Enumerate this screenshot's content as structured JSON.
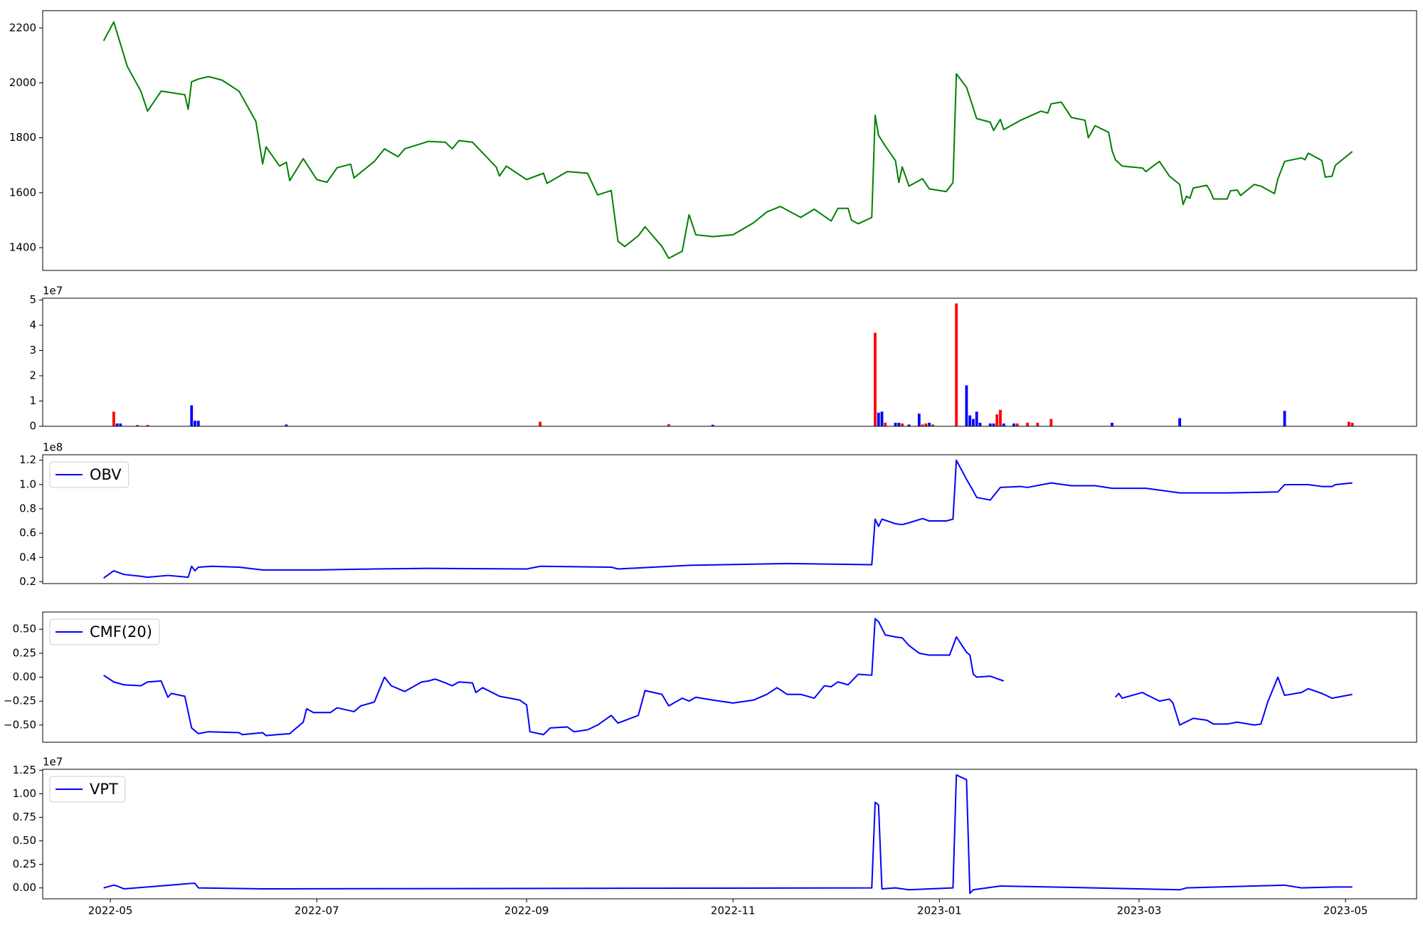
{
  "chart_data": [
    {
      "type": "line",
      "x": [
        "2022-04-29",
        "2022-05-02",
        "2022-05-06",
        "2022-05-10",
        "2022-05-12",
        "2022-05-16",
        "2022-05-23",
        "2022-05-24",
        "2022-05-25",
        "2022-05-27",
        "2022-05-30",
        "2022-06-03",
        "2022-06-08",
        "2022-06-13",
        "2022-06-15",
        "2022-06-16",
        "2022-06-20",
        "2022-06-22",
        "2022-06-23",
        "2022-06-27",
        "2022-07-01",
        "2022-07-04",
        "2022-07-07",
        "2022-07-11",
        "2022-07-12",
        "2022-07-18",
        "2022-07-21",
        "2022-07-25",
        "2022-07-27",
        "2022-08-03",
        "2022-08-08",
        "2022-08-10",
        "2022-08-12",
        "2022-08-16",
        "2022-08-23",
        "2022-08-24",
        "2022-08-26",
        "2022-09-01",
        "2022-09-06",
        "2022-09-07",
        "2022-09-13",
        "2022-09-19",
        "2022-09-22",
        "2022-09-26",
        "2022-09-28",
        "2022-09-30",
        "2022-10-04",
        "2022-10-06",
        "2022-10-11",
        "2022-10-13",
        "2022-10-17",
        "2022-10-19",
        "2022-10-21",
        "2022-10-26",
        "2022-11-01",
        "2022-11-07",
        "2022-11-11",
        "2022-11-15",
        "2022-11-21",
        "2022-11-25",
        "2022-11-30",
        "2022-12-02",
        "2022-12-05",
        "2022-12-06",
        "2022-12-08",
        "2022-12-12",
        "2022-12-13",
        "2022-12-14",
        "2022-12-16",
        "2022-12-19",
        "2022-12-20",
        "2022-12-21",
        "2022-12-23",
        "2022-12-27",
        "2022-12-29",
        "2023-01-03",
        "2023-01-05",
        "2023-01-06",
        "2023-01-09",
        "2023-01-12",
        "2023-01-16",
        "2023-01-17",
        "2023-01-19",
        "2023-01-20",
        "2023-01-25",
        "2023-01-31",
        "2023-02-02",
        "2023-02-03",
        "2023-02-06",
        "2023-02-09",
        "2023-02-13",
        "2023-02-14",
        "2023-02-16",
        "2023-02-20",
        "2023-02-21",
        "2023-02-22",
        "2023-02-24",
        "2023-03-02",
        "2023-03-03",
        "2023-03-07",
        "2023-03-10",
        "2023-03-13",
        "2023-03-14",
        "2023-03-15",
        "2023-03-16",
        "2023-03-17",
        "2023-03-21",
        "2023-03-22",
        "2023-03-23",
        "2023-03-27",
        "2023-03-28",
        "2023-03-30",
        "2023-03-31",
        "2023-04-04",
        "2023-04-06",
        "2023-04-10",
        "2023-04-11",
        "2023-04-13",
        "2023-04-18",
        "2023-04-19",
        "2023-04-20",
        "2023-04-24",
        "2023-04-25",
        "2023-04-27",
        "2023-04-28",
        "2023-05-03"
      ],
      "series": [
        {
          "color": "#008000",
          "values": [
            2153,
            2222,
            2060,
            1970,
            1897,
            1970,
            1957,
            1904,
            2004,
            2014,
            2023,
            2010,
            1970,
            1860,
            1705,
            1767,
            1697,
            1711,
            1644,
            1724,
            1648,
            1638,
            1691,
            1704,
            1654,
            1714,
            1760,
            1731,
            1760,
            1787,
            1784,
            1760,
            1790,
            1784,
            1694,
            1661,
            1697,
            1648,
            1671,
            1634,
            1677,
            1671,
            1592,
            1608,
            1423,
            1404,
            1443,
            1476,
            1404,
            1361,
            1387,
            1520,
            1447,
            1440,
            1447,
            1490,
            1530,
            1550,
            1510,
            1540,
            1497,
            1543,
            1543,
            1500,
            1487,
            1510,
            1882,
            1809,
            1770,
            1717,
            1637,
            1694,
            1624,
            1651,
            1614,
            1604,
            1637,
            2033,
            1984,
            1870,
            1857,
            1827,
            1867,
            1830,
            1864,
            1897,
            1890,
            1924,
            1930,
            1874,
            1864,
            1800,
            1844,
            1820,
            1754,
            1720,
            1697,
            1690,
            1677,
            1714,
            1660,
            1630,
            1557,
            1587,
            1580,
            1617,
            1627,
            1607,
            1577,
            1577,
            1607,
            1610,
            1590,
            1630,
            1624,
            1597,
            1650,
            1714,
            1727,
            1720,
            1744,
            1717,
            1657,
            1660,
            1700,
            1750
          ]
        }
      ],
      "xlim": [
        "2022-04-11",
        "2023-05-22"
      ],
      "ylim": [
        1317,
        2263
      ],
      "yticks": [
        1400,
        1600,
        1800,
        2000,
        2200
      ]
    },
    {
      "type": "bar",
      "offset_label": "1e7",
      "x": [
        "2022-05-02",
        "2022-05-03",
        "2022-05-04",
        "2022-05-09",
        "2022-05-12",
        "2022-05-25",
        "2022-05-26",
        "2022-05-27",
        "2022-06-22",
        "2022-09-05",
        "2022-10-13",
        "2022-10-26",
        "2022-12-13",
        "2022-12-14",
        "2022-12-15",
        "2022-12-16",
        "2022-12-19",
        "2022-12-20",
        "2022-12-21",
        "2022-12-23",
        "2022-12-26",
        "2022-12-27",
        "2022-12-28",
        "2022-12-29",
        "2022-12-30",
        "2023-01-06",
        "2023-01-09",
        "2023-01-10",
        "2023-01-11",
        "2023-01-12",
        "2023-01-13",
        "2023-01-16",
        "2023-01-17",
        "2023-01-18",
        "2023-01-19",
        "2023-01-20",
        "2023-01-23",
        "2023-01-24",
        "2023-01-27",
        "2023-01-30",
        "2023-02-03",
        "2023-02-21",
        "2023-03-13",
        "2023-04-13",
        "2023-05-02",
        "2023-05-03"
      ],
      "values": [
        5800000,
        1100000,
        1100000,
        500000,
        500000,
        8300000,
        2200000,
        2200000,
        700000,
        1800000,
        800000,
        600000,
        37000000,
        5400000,
        5800000,
        1400000,
        1400000,
        1400000,
        1100000,
        700000,
        5000000,
        700000,
        1100000,
        1400000,
        700000,
        48600000,
        16200000,
        4300000,
        2900000,
        5800000,
        1400000,
        1100000,
        1100000,
        4700000,
        6500000,
        1100000,
        1100000,
        1100000,
        1400000,
        1400000,
        2900000,
        1400000,
        3200000,
        6100000,
        1800000,
        1400000
      ],
      "colors": [
        "#ff0000",
        "#0000ff",
        "#0000ff",
        "#ff0000",
        "#ff0000",
        "#0000ff",
        "#0000ff",
        "#0000ff",
        "#0000ff",
        "#ff0000",
        "#ff0000",
        "#0000ff",
        "#ff0000",
        "#0000ff",
        "#0000ff",
        "#ff0000",
        "#0000ff",
        "#0000ff",
        "#ff0000",
        "#0000ff",
        "#0000ff",
        "#ff0000",
        "#ff0000",
        "#0000ff",
        "#ff0000",
        "#ff0000",
        "#0000ff",
        "#0000ff",
        "#0000ff",
        "#0000ff",
        "#0000ff",
        "#0000ff",
        "#0000ff",
        "#ff0000",
        "#ff0000",
        "#0000ff",
        "#0000ff",
        "#ff0000",
        "#ff0000",
        "#ff0000",
        "#ff0000",
        "#0000ff",
        "#0000ff",
        "#0000ff",
        "#ff0000",
        "#ff0000"
      ],
      "xlim": [
        "2022-04-11",
        "2023-05-22"
      ],
      "ylim": [
        0,
        50700000
      ],
      "yticks": [
        0,
        {
          "value": 10000000,
          "label": "1"
        },
        {
          "value": 20000000,
          "label": "2"
        },
        {
          "value": 30000000,
          "label": "3"
        },
        {
          "value": 40000000,
          "label": "4"
        },
        {
          "value": 50000000,
          "label": "5"
        }
      ]
    },
    {
      "type": "line",
      "offset_label": "1e8",
      "legend": "upper left",
      "x": [
        "2022-04-29",
        "2022-05-02",
        "2022-05-05",
        "2022-05-10",
        "2022-05-12",
        "2022-05-18",
        "2022-05-24",
        "2022-05-25",
        "2022-05-26",
        "2022-05-27",
        "2022-05-31",
        "2022-06-08",
        "2022-06-15",
        "2022-07-01",
        "2022-07-18",
        "2022-08-03",
        "2022-09-01",
        "2022-09-05",
        "2022-09-26",
        "2022-09-28",
        "2022-10-19",
        "2022-11-17",
        "2022-12-12",
        "2022-12-13",
        "2022-12-14",
        "2022-12-15",
        "2022-12-19",
        "2022-12-21",
        "2022-12-23",
        "2022-12-27",
        "2022-12-29",
        "2023-01-03",
        "2023-01-05",
        "2023-01-06",
        "2023-01-09",
        "2023-01-11",
        "2023-01-12",
        "2023-01-16",
        "2023-01-19",
        "2023-01-25",
        "2023-01-27",
        "2023-02-03",
        "2023-02-09",
        "2023-02-16",
        "2023-02-21",
        "2023-03-03",
        "2023-03-13",
        "2023-03-27",
        "2023-04-11",
        "2023-04-13",
        "2023-04-20",
        "2023-04-24",
        "2023-04-27",
        "2023-04-28",
        "2023-05-03"
      ],
      "series": [
        {
          "name": "OBV",
          "color": "#0000ff",
          "values": [
            23000000,
            29000000,
            26000000,
            24500000,
            23700000,
            25200000,
            23700000,
            32700000,
            29000000,
            32000000,
            32700000,
            32000000,
            29700000,
            29700000,
            30500000,
            31000000,
            30500000,
            32700000,
            32000000,
            30500000,
            33500000,
            35000000,
            34000000,
            71500000,
            65500000,
            71500000,
            67700000,
            67000000,
            68500000,
            72000000,
            70000000,
            70000000,
            71500000,
            120000000,
            104300000,
            94600000,
            89400000,
            87200000,
            97600000,
            98400000,
            97600000,
            101300000,
            99000000,
            99000000,
            96900000,
            96900000,
            93100000,
            93100000,
            93900000,
            99900000,
            99900000,
            98400000,
            98400000,
            99900000,
            101300000
          ]
        }
      ],
      "xlim": [
        "2022-04-11",
        "2023-05-22"
      ],
      "ylim": [
        18500000,
        124500000
      ],
      "yticks": [
        {
          "value": 20000000,
          "label": "0.2"
        },
        {
          "value": 40000000,
          "label": "0.4"
        },
        {
          "value": 60000000,
          "label": "0.6"
        },
        {
          "value": 80000000,
          "label": "0.8"
        },
        {
          "value": 100000000,
          "label": "1.0"
        },
        {
          "value": 120000000,
          "label": "1.2"
        }
      ]
    },
    {
      "type": "line",
      "legend": "upper left",
      "x": [
        "2022-04-29",
        "2022-05-02",
        "2022-05-05",
        "2022-05-10",
        "2022-05-12",
        "2022-05-16",
        "2022-05-18",
        "2022-05-19",
        "2022-05-23",
        "2022-05-25",
        "2022-05-27",
        "2022-05-30",
        "2022-06-08",
        "2022-06-09",
        "2022-06-15",
        "2022-06-16",
        "2022-06-23",
        "2022-06-27",
        "2022-06-28",
        "2022-06-30",
        "2022-07-05",
        "2022-07-07",
        "2022-07-12",
        "2022-07-14",
        "2022-07-18",
        "2022-07-21",
        "2022-07-23",
        "2022-07-27",
        "2022-08-01",
        "2022-08-03",
        "2022-08-05",
        "2022-08-08",
        "2022-08-10",
        "2022-08-12",
        "2022-08-16",
        "2022-08-17",
        "2022-08-19",
        "2022-08-24",
        "2022-08-30",
        "2022-09-01",
        "2022-09-02",
        "2022-09-06",
        "2022-09-08",
        "2022-09-13",
        "2022-09-15",
        "2022-09-19",
        "2022-09-22",
        "2022-09-26",
        "2022-09-28",
        "2022-10-04",
        "2022-10-06",
        "2022-10-11",
        "2022-10-13",
        "2022-10-17",
        "2022-10-19",
        "2022-10-21",
        "2022-10-26",
        "2022-11-01",
        "2022-11-07",
        "2022-11-11",
        "2022-11-14",
        "2022-11-17",
        "2022-11-21",
        "2022-11-25",
        "2022-11-28",
        "2022-11-30",
        "2022-12-02",
        "2022-12-05",
        "2022-12-08",
        "2022-12-12",
        "2022-12-13",
        "2022-12-14",
        "2022-12-16",
        "2022-12-19",
        "2022-12-21",
        "2022-12-23",
        "2022-12-26",
        "2022-12-29",
        "2023-01-04",
        "2023-01-06",
        "2023-01-09",
        "2023-01-10",
        "2023-01-11",
        "2023-01-12",
        "2023-01-16",
        "2023-01-20",
        "2023-02-01",
        "2023-02-22",
        "2023-02-23",
        "2023-02-24",
        "2023-02-28",
        "2023-03-02",
        "2023-03-03",
        "2023-03-07",
        "2023-03-10",
        "2023-03-11",
        "2023-03-13",
        "2023-03-17",
        "2023-03-21",
        "2023-03-23",
        "2023-03-27",
        "2023-03-30",
        "2023-04-04",
        "2023-04-06",
        "2023-04-08",
        "2023-04-11",
        "2023-04-13",
        "2023-04-18",
        "2023-04-20",
        "2023-04-24",
        "2023-04-27",
        "2023-05-03"
      ],
      "series": [
        {
          "name": "CMF(20)",
          "color": "#0000ff",
          "values": [
            0.02,
            -0.05,
            -0.08,
            -0.09,
            -0.05,
            -0.04,
            -0.21,
            -0.17,
            -0.2,
            -0.53,
            -0.59,
            -0.57,
            -0.58,
            -0.6,
            -0.58,
            -0.61,
            -0.59,
            -0.47,
            -0.33,
            -0.37,
            -0.37,
            -0.32,
            -0.36,
            -0.3,
            -0.26,
            0.0,
            -0.09,
            -0.15,
            -0.05,
            -0.04,
            -0.02,
            -0.06,
            -0.09,
            -0.05,
            -0.06,
            -0.16,
            -0.11,
            -0.2,
            -0.24,
            -0.29,
            -0.57,
            -0.6,
            -0.53,
            -0.52,
            -0.57,
            -0.55,
            -0.5,
            -0.4,
            -0.48,
            -0.4,
            -0.14,
            -0.18,
            -0.3,
            -0.22,
            -0.25,
            -0.21,
            -0.24,
            -0.27,
            -0.24,
            -0.18,
            -0.11,
            -0.18,
            -0.18,
            -0.22,
            -0.09,
            -0.1,
            -0.05,
            -0.08,
            0.03,
            0.02,
            0.61,
            0.58,
            0.44,
            0.42,
            0.41,
            0.33,
            0.25,
            0.23,
            0.23,
            0.42,
            0.26,
            0.23,
            0.03,
            0.0,
            0.01,
            -0.04,
            null,
            -0.21,
            -0.17,
            -0.22,
            -0.18,
            -0.16,
            -0.18,
            -0.25,
            -0.23,
            -0.27,
            -0.5,
            -0.43,
            -0.45,
            -0.49,
            -0.49,
            -0.47,
            -0.5,
            -0.49,
            -0.26,
            0.0,
            -0.19,
            -0.16,
            -0.12,
            -0.17,
            -0.22,
            -0.18
          ]
        }
      ],
      "xlim": [
        "2022-04-11",
        "2023-05-22"
      ],
      "ylim": [
        -0.68,
        0.68
      ],
      "yticks": [
        {
          "value": -0.5,
          "label": "−0.50"
        },
        {
          "value": -0.25,
          "label": "−0.25"
        },
        {
          "value": 0,
          "label": "0.00"
        },
        {
          "value": 0.25,
          "label": "0.25"
        },
        {
          "value": 0.5,
          "label": "0.50"
        }
      ]
    },
    {
      "type": "line",
      "offset_label": "1e7",
      "legend": "upper left",
      "x": [
        "2022-04-29",
        "2022-05-02",
        "2022-05-03",
        "2022-05-05",
        "2022-05-25",
        "2022-05-26",
        "2022-05-27",
        "2022-06-15",
        "2022-12-12",
        "2022-12-13",
        "2022-12-14",
        "2022-12-15",
        "2022-12-19",
        "2022-12-23",
        "2023-01-05",
        "2023-01-06",
        "2023-01-09",
        "2023-01-10",
        "2023-01-11",
        "2023-01-19",
        "2023-02-03",
        "2023-03-13",
        "2023-03-15",
        "2023-04-13",
        "2023-04-18",
        "2023-04-28",
        "2023-05-03"
      ],
      "series": [
        {
          "name": "VPT",
          "color": "#0000ff",
          "values": [
            0,
            290000,
            200000,
            -100000,
            480000,
            480000,
            0,
            -100000,
            0,
            9100000,
            8800000,
            -100000,
            0,
            -200000,
            0,
            12000000,
            11500000,
            -580000,
            -200000,
            200000,
            100000,
            -200000,
            0,
            290000,
            0,
            100000,
            100000
          ]
        }
      ],
      "xlim": [
        "2022-04-11",
        "2023-05-22"
      ],
      "ylim": [
        -1160000,
        12600000
      ],
      "yticks": [
        {
          "value": 0,
          "label": "0.00"
        },
        {
          "value": 2500000,
          "label": "0.25"
        },
        {
          "value": 5000000,
          "label": "0.50"
        },
        {
          "value": 7500000,
          "label": "0.75"
        },
        {
          "value": 10000000,
          "label": "1.00"
        },
        {
          "value": 12500000,
          "label": "1.25"
        }
      ],
      "xticks": [
        {
          "value": "2022-05-01",
          "label": "2022-05"
        },
        {
          "value": "2022-07-01",
          "label": "2022-07"
        },
        {
          "value": "2022-09-01",
          "label": "2022-09"
        },
        {
          "value": "2022-11-01",
          "label": "2022-11"
        },
        {
          "value": "2023-01-01",
          "label": "2023-01"
        },
        {
          "value": "2023-03-01",
          "label": "2023-03"
        },
        {
          "value": "2023-05-01",
          "label": "2023-05"
        }
      ]
    }
  ]
}
